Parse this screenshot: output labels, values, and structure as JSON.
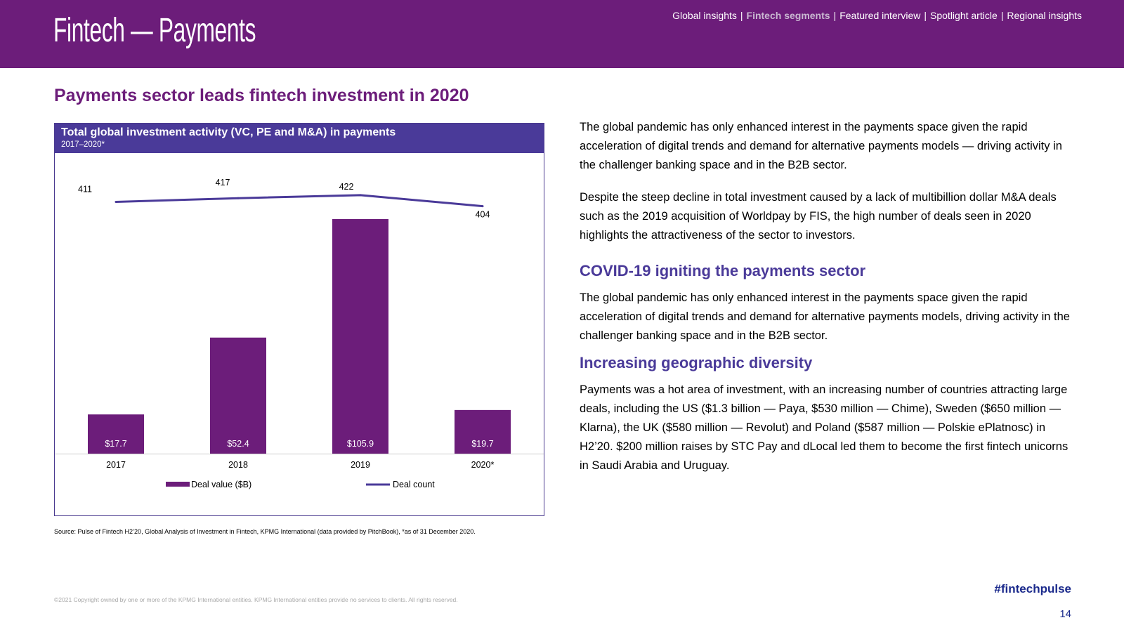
{
  "header": {
    "title": "Fintech — Payments",
    "nav": [
      {
        "label": "Global insights",
        "active": false
      },
      {
        "label": "Fintech segments",
        "active": true
      },
      {
        "label": "Featured interview",
        "active": false
      },
      {
        "label": "Spotlight article",
        "active": false
      },
      {
        "label": "Regional insights",
        "active": false
      }
    ],
    "separator": "|"
  },
  "section_title": "Payments sector leads fintech investment in 2020",
  "chart_panel": {
    "title": "Total global investment activity (VC, PE and M&A) in payments",
    "subtitle": "2017–2020*"
  },
  "chart_data": {
    "type": "bar",
    "categories": [
      "2017",
      "2018",
      "2019",
      "2020*"
    ],
    "series": [
      {
        "name": "Deal value ($B)",
        "type": "bar",
        "axis": "left",
        "color": "#6c1d7a",
        "values": [
          17.7,
          52.4,
          105.9,
          19.7
        ],
        "labels": [
          "$17.7",
          "$52.4",
          "$105.9",
          "$19.7"
        ]
      },
      {
        "name": "Deal count",
        "type": "line",
        "axis": "right",
        "color": "#4a3a99",
        "values": [
          411,
          417,
          422,
          404
        ],
        "labels": [
          "411",
          "417",
          "422",
          "404"
        ]
      }
    ],
    "ylim_left": [
      0,
      130
    ],
    "ylim_right": [
      0,
      470
    ],
    "grid": false,
    "legend_position": "bottom"
  },
  "colors": {
    "brand_purple": "#6c1d7a",
    "accent_indigo": "#4a3a99",
    "link_blue": "#1b2a8c"
  },
  "source_note": "Source: Pulse of Fintech H2’20, Global Analysis of Investment in Fintech, KPMG International (data provided by PitchBook), *as of 31 December 2020.",
  "body": {
    "para1": "The global pandemic has only enhanced interest in the payments space given the rapid acceleration of digital trends and demand for alternative payments models — driving activity in the challenger banking space and in the B2B sector.",
    "para2": "Despite the steep decline in total investment caused by a lack of multibillion dollar M&A deals such as the 2019 acquisition of Worldpay by FIS, the high number of deals seen in 2020 highlights the attractiveness of the sector to investors.",
    "subhead1": "COVID-19 igniting the payments sector",
    "para3": "The global pandemic has only enhanced interest in the payments space given the rapid acceleration of digital trends and demand for alternative payments models, driving activity in the challenger banking space and in the B2B sector.",
    "subhead2": "Increasing geographic diversity",
    "para4": "Payments was a hot area of investment, with an increasing number of countries attracting large deals, including the US ($1.3 billion — Paya, $530 million — Chime), Sweden ($650 million — Klarna), the UK ($580 million — Revolut) and Poland ($587 million — Polskie ePlatnosc) in H2’20. $200 million raises by STC Pay and dLocal led them to become the first fintech unicorns in Saudi Arabia and Uruguay."
  },
  "footer": {
    "hashtag": "#fintechpulse",
    "page_number": "14",
    "copyright": "©2021 Copyright owned by one or more of the KPMG International entities. KPMG International entities provide no services to clients. All rights reserved."
  }
}
